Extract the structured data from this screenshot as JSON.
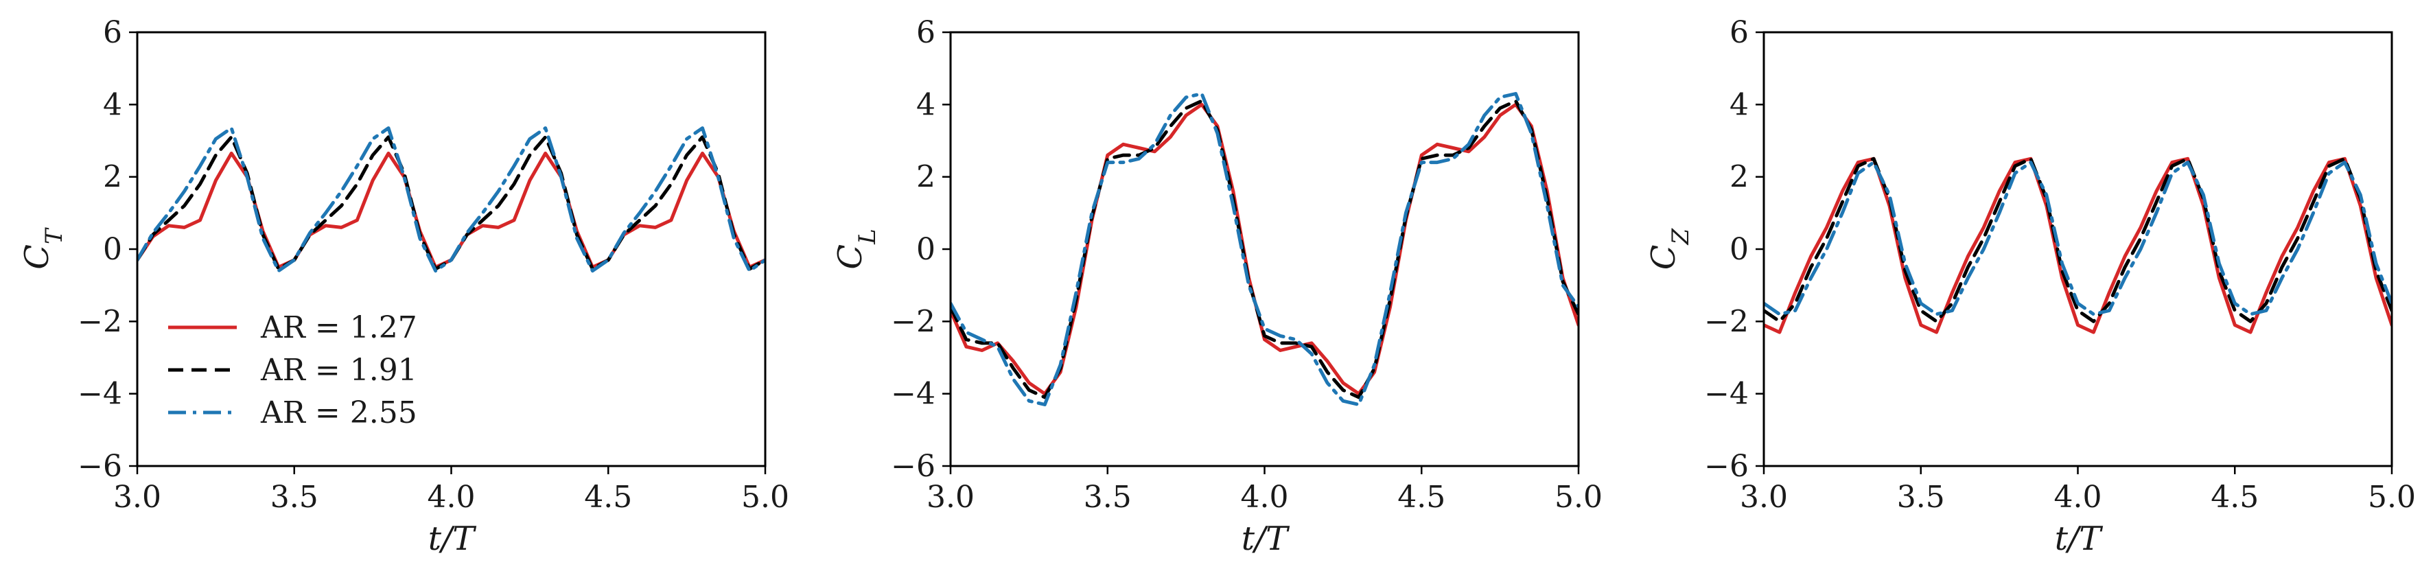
{
  "legend": {
    "entries": [
      {
        "label": "AR = 1.27",
        "series": "ar127"
      },
      {
        "label": "AR = 1.91",
        "series": "ar191"
      },
      {
        "label": "AR = 2.55",
        "series": "ar255"
      }
    ]
  },
  "styles": {
    "ar127": {
      "color": "#d62728",
      "dash": "solid"
    },
    "ar191": {
      "color": "#000000",
      "dash": "dashed"
    },
    "ar255": {
      "color": "#1f77b4",
      "dash": "dashdot"
    }
  },
  "chart_data": [
    {
      "type": "line",
      "xlabel": "t/T",
      "ylabel": "C_T",
      "xlim": [
        3.0,
        5.0
      ],
      "ylim": [
        -6,
        6
      ],
      "xticks": [
        "3.0",
        "3.5",
        "4.0",
        "4.5",
        "5.0"
      ],
      "yticks": [
        "−6",
        "−4",
        "−2",
        "0",
        "2",
        "4",
        "6"
      ],
      "legend_placement": "lower-left",
      "series": [
        {
          "key": "ar127",
          "x": [
            3.0,
            3.05,
            3.1,
            3.15,
            3.2,
            3.25,
            3.3,
            3.35,
            3.4,
            3.45,
            3.5,
            3.55,
            3.6,
            3.65,
            3.7,
            3.75,
            3.8,
            3.85,
            3.9,
            3.95,
            4.0,
            4.05,
            4.1,
            4.15,
            4.2,
            4.25,
            4.3,
            4.35,
            4.4,
            4.45,
            4.5,
            4.55,
            4.6,
            4.65,
            4.7,
            4.75,
            4.8,
            4.85,
            4.9,
            4.95,
            5.0
          ],
          "y": [
            -0.3,
            0.35,
            0.65,
            0.6,
            0.8,
            1.9,
            2.65,
            2.0,
            0.5,
            -0.5,
            -0.3,
            0.4,
            0.65,
            0.6,
            0.8,
            1.9,
            2.65,
            2.0,
            0.5,
            -0.5,
            -0.3,
            0.4,
            0.65,
            0.6,
            0.8,
            1.9,
            2.65,
            2.0,
            0.5,
            -0.5,
            -0.3,
            0.4,
            0.65,
            0.6,
            0.8,
            1.9,
            2.65,
            2.0,
            0.5,
            -0.5,
            -0.3
          ]
        },
        {
          "key": "ar191",
          "x": [
            3.0,
            3.05,
            3.1,
            3.15,
            3.2,
            3.25,
            3.3,
            3.35,
            3.4,
            3.45,
            3.5,
            3.55,
            3.6,
            3.65,
            3.7,
            3.75,
            3.8,
            3.85,
            3.9,
            3.95,
            4.0,
            4.05,
            4.1,
            4.15,
            4.2,
            4.25,
            4.3,
            4.35,
            4.4,
            4.45,
            4.5,
            4.55,
            4.6,
            4.65,
            4.7,
            4.75,
            4.8,
            4.85,
            4.9,
            4.95,
            5.0
          ],
          "y": [
            -0.3,
            0.4,
            0.8,
            1.2,
            1.8,
            2.6,
            3.1,
            2.1,
            0.4,
            -0.55,
            -0.3,
            0.4,
            0.8,
            1.2,
            1.8,
            2.6,
            3.1,
            2.1,
            0.4,
            -0.55,
            -0.3,
            0.4,
            0.8,
            1.2,
            1.8,
            2.6,
            3.1,
            2.1,
            0.4,
            -0.55,
            -0.3,
            0.4,
            0.8,
            1.2,
            1.8,
            2.6,
            3.1,
            2.1,
            0.4,
            -0.55,
            -0.3
          ]
        },
        {
          "key": "ar255",
          "x": [
            3.0,
            3.05,
            3.1,
            3.15,
            3.2,
            3.25,
            3.3,
            3.35,
            3.4,
            3.45,
            3.5,
            3.55,
            3.6,
            3.65,
            3.7,
            3.75,
            3.8,
            3.85,
            3.9,
            3.95,
            4.0,
            4.05,
            4.1,
            4.15,
            4.2,
            4.25,
            4.3,
            4.35,
            4.4,
            4.45,
            4.5,
            4.55,
            4.6,
            4.65,
            4.7,
            4.75,
            4.8,
            4.85,
            4.9,
            4.95,
            5.0
          ],
          "y": [
            -0.3,
            0.45,
            1.0,
            1.6,
            2.3,
            3.05,
            3.35,
            2.0,
            0.3,
            -0.6,
            -0.3,
            0.45,
            1.0,
            1.6,
            2.3,
            3.05,
            3.35,
            2.0,
            0.3,
            -0.6,
            -0.3,
            0.45,
            1.0,
            1.6,
            2.3,
            3.05,
            3.35,
            2.0,
            0.3,
            -0.6,
            -0.3,
            0.45,
            1.0,
            1.6,
            2.3,
            3.05,
            3.35,
            2.0,
            0.3,
            -0.6,
            -0.3
          ]
        }
      ]
    },
    {
      "type": "line",
      "xlabel": "t/T",
      "ylabel": "C_L",
      "xlim": [
        3.0,
        5.0
      ],
      "ylim": [
        -6,
        6
      ],
      "xticks": [
        "3.0",
        "3.5",
        "4.0",
        "4.5",
        "5.0"
      ],
      "yticks": [
        "−6",
        "−4",
        "−2",
        "0",
        "2",
        "4",
        "6"
      ],
      "series": [
        {
          "key": "ar127",
          "x": [
            3.0,
            3.05,
            3.1,
            3.15,
            3.2,
            3.25,
            3.3,
            3.35,
            3.4,
            3.45,
            3.5,
            3.55,
            3.6,
            3.65,
            3.7,
            3.75,
            3.8,
            3.85,
            3.9,
            3.95,
            4.0,
            4.05,
            4.1,
            4.15,
            4.2,
            4.25,
            4.3,
            4.35,
            4.4,
            4.45,
            4.5,
            4.55,
            4.6,
            4.65,
            4.7,
            4.75,
            4.8,
            4.85,
            4.9,
            4.95,
            5.0
          ],
          "y": [
            -1.7,
            -2.7,
            -2.8,
            -2.6,
            -3.1,
            -3.7,
            -4.0,
            -3.4,
            -1.6,
            0.8,
            2.6,
            2.9,
            2.8,
            2.7,
            3.1,
            3.7,
            4.0,
            3.4,
            1.6,
            -0.8,
            -2.5,
            -2.8,
            -2.7,
            -2.6,
            -3.1,
            -3.7,
            -4.0,
            -3.4,
            -1.6,
            0.8,
            2.6,
            2.9,
            2.8,
            2.7,
            3.1,
            3.7,
            4.0,
            3.4,
            1.6,
            -0.8,
            -2.1
          ]
        },
        {
          "key": "ar191",
          "x": [
            3.0,
            3.05,
            3.1,
            3.15,
            3.2,
            3.25,
            3.3,
            3.35,
            3.4,
            3.45,
            3.5,
            3.55,
            3.6,
            3.65,
            3.7,
            3.75,
            3.8,
            3.85,
            3.9,
            3.95,
            4.0,
            4.05,
            4.1,
            4.15,
            4.2,
            4.25,
            4.3,
            4.35,
            4.4,
            4.45,
            4.5,
            4.55,
            4.6,
            4.65,
            4.7,
            4.75,
            4.8,
            4.85,
            4.9,
            4.95,
            5.0
          ],
          "y": [
            -1.6,
            -2.5,
            -2.6,
            -2.6,
            -3.3,
            -3.9,
            -4.1,
            -3.3,
            -1.4,
            0.9,
            2.5,
            2.6,
            2.6,
            2.8,
            3.4,
            3.9,
            4.1,
            3.3,
            1.4,
            -0.9,
            -2.4,
            -2.6,
            -2.6,
            -2.7,
            -3.4,
            -3.9,
            -4.1,
            -3.3,
            -1.4,
            0.9,
            2.5,
            2.6,
            2.6,
            2.8,
            3.4,
            3.9,
            4.1,
            3.3,
            1.4,
            -0.9,
            -1.8
          ]
        },
        {
          "key": "ar255",
          "x": [
            3.0,
            3.05,
            3.1,
            3.15,
            3.2,
            3.25,
            3.3,
            3.35,
            3.4,
            3.45,
            3.5,
            3.55,
            3.6,
            3.65,
            3.7,
            3.75,
            3.8,
            3.85,
            3.9,
            3.95,
            4.0,
            4.05,
            4.1,
            4.15,
            4.2,
            4.25,
            4.3,
            4.35,
            4.4,
            4.45,
            4.5,
            4.55,
            4.6,
            4.65,
            4.7,
            4.75,
            4.8,
            4.85,
            4.9,
            4.95,
            5.0
          ],
          "y": [
            -1.5,
            -2.3,
            -2.5,
            -2.7,
            -3.6,
            -4.2,
            -4.3,
            -3.2,
            -1.2,
            1.0,
            2.4,
            2.4,
            2.5,
            2.9,
            3.7,
            4.2,
            4.3,
            3.2,
            1.2,
            -1.0,
            -2.2,
            -2.4,
            -2.5,
            -2.9,
            -3.7,
            -4.2,
            -4.3,
            -3.2,
            -1.2,
            1.0,
            2.4,
            2.4,
            2.5,
            2.9,
            3.7,
            4.2,
            4.3,
            3.2,
            1.2,
            -1.0,
            -1.6
          ]
        }
      ]
    },
    {
      "type": "line",
      "xlabel": "t/T",
      "ylabel": "C_Z",
      "xlim": [
        3.0,
        5.0
      ],
      "ylim": [
        -6,
        6
      ],
      "xticks": [
        "3.0",
        "3.5",
        "4.0",
        "4.5",
        "5.0"
      ],
      "yticks": [
        "−6",
        "−4",
        "−2",
        "0",
        "2",
        "4",
        "6"
      ],
      "series": [
        {
          "key": "ar127",
          "x": [
            3.0,
            3.05,
            3.1,
            3.15,
            3.2,
            3.25,
            3.3,
            3.35,
            3.4,
            3.45,
            3.5,
            3.55,
            3.6,
            3.65,
            3.7,
            3.75,
            3.8,
            3.85,
            3.9,
            3.95,
            4.0,
            4.05,
            4.1,
            4.15,
            4.2,
            4.25,
            4.3,
            4.35,
            4.4,
            4.45,
            4.5,
            4.55,
            4.6,
            4.65,
            4.7,
            4.75,
            4.8,
            4.85,
            4.9,
            4.95,
            5.0
          ],
          "y": [
            -2.1,
            -2.3,
            -1.2,
            -0.2,
            0.6,
            1.6,
            2.4,
            2.5,
            1.2,
            -0.8,
            -2.1,
            -2.3,
            -1.2,
            -0.2,
            0.6,
            1.6,
            2.4,
            2.5,
            1.2,
            -0.8,
            -2.1,
            -2.3,
            -1.2,
            -0.2,
            0.6,
            1.6,
            2.4,
            2.5,
            1.2,
            -0.8,
            -2.1,
            -2.3,
            -1.2,
            -0.2,
            0.6,
            1.6,
            2.4,
            2.5,
            1.2,
            -0.8,
            -2.1
          ]
        },
        {
          "key": "ar191",
          "x": [
            3.0,
            3.05,
            3.1,
            3.15,
            3.2,
            3.25,
            3.3,
            3.35,
            3.4,
            3.45,
            3.5,
            3.55,
            3.6,
            3.65,
            3.7,
            3.75,
            3.8,
            3.85,
            3.9,
            3.95,
            4.0,
            4.05,
            4.1,
            4.15,
            4.2,
            4.25,
            4.3,
            4.35,
            4.4,
            4.45,
            4.5,
            4.55,
            4.6,
            4.65,
            4.7,
            4.75,
            4.8,
            4.85,
            4.9,
            4.95,
            5.0
          ],
          "y": [
            -1.7,
            -2.0,
            -1.5,
            -0.5,
            0.3,
            1.3,
            2.3,
            2.5,
            1.4,
            -0.6,
            -1.7,
            -2.0,
            -1.5,
            -0.5,
            0.3,
            1.3,
            2.3,
            2.5,
            1.4,
            -0.6,
            -1.7,
            -2.0,
            -1.5,
            -0.5,
            0.3,
            1.3,
            2.3,
            2.5,
            1.4,
            -0.6,
            -1.7,
            -2.0,
            -1.5,
            -0.5,
            0.3,
            1.3,
            2.3,
            2.5,
            1.4,
            -0.6,
            -1.7
          ]
        },
        {
          "key": "ar255",
          "x": [
            3.0,
            3.05,
            3.1,
            3.15,
            3.2,
            3.25,
            3.3,
            3.35,
            3.4,
            3.45,
            3.5,
            3.55,
            3.6,
            3.65,
            3.7,
            3.75,
            3.8,
            3.85,
            3.9,
            3.95,
            4.0,
            4.05,
            4.1,
            4.15,
            4.2,
            4.25,
            4.3,
            4.35,
            4.4,
            4.45,
            4.5,
            4.55,
            4.6,
            4.65,
            4.7,
            4.75,
            4.8,
            4.85,
            4.9,
            4.95,
            5.0
          ],
          "y": [
            -1.5,
            -1.8,
            -1.7,
            -0.8,
            0.0,
            1.0,
            2.1,
            2.4,
            1.5,
            -0.4,
            -1.5,
            -1.8,
            -1.7,
            -0.8,
            0.0,
            1.0,
            2.1,
            2.4,
            1.5,
            -0.4,
            -1.5,
            -1.8,
            -1.7,
            -0.8,
            0.0,
            1.0,
            2.1,
            2.4,
            1.5,
            -0.4,
            -1.5,
            -1.8,
            -1.7,
            -0.8,
            0.0,
            1.0,
            2.1,
            2.4,
            1.5,
            -0.4,
            -1.5
          ]
        }
      ]
    }
  ]
}
